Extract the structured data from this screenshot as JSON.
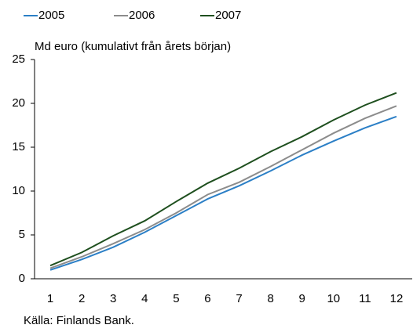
{
  "chart_data": {
    "type": "line",
    "ylabel": "Md euro (kumulativt från årets början)",
    "source": "Källa: Finlands Bank.",
    "categories": [
      "1",
      "2",
      "3",
      "4",
      "5",
      "6",
      "7",
      "8",
      "9",
      "10",
      "11",
      "12"
    ],
    "series": [
      {
        "name": "2005",
        "color": "#2b7fc6",
        "values": [
          1.0,
          2.2,
          3.6,
          5.3,
          7.2,
          9.1,
          10.6,
          12.3,
          14.1,
          15.7,
          17.2,
          18.5
        ]
      },
      {
        "name": "2006",
        "color": "#8c8c8c",
        "values": [
          1.2,
          2.5,
          4.0,
          5.6,
          7.5,
          9.6,
          11.0,
          12.8,
          14.7,
          16.6,
          18.3,
          19.7
        ]
      },
      {
        "name": "2007",
        "color": "#1e4f1e",
        "values": [
          1.5,
          3.0,
          4.9,
          6.6,
          8.8,
          10.9,
          12.6,
          14.5,
          16.2,
          18.1,
          19.8,
          21.2
        ]
      }
    ],
    "ylim": [
      0,
      25
    ],
    "yticks": [
      0,
      5,
      10,
      15,
      20,
      25
    ],
    "grid": false,
    "legend": "top"
  }
}
